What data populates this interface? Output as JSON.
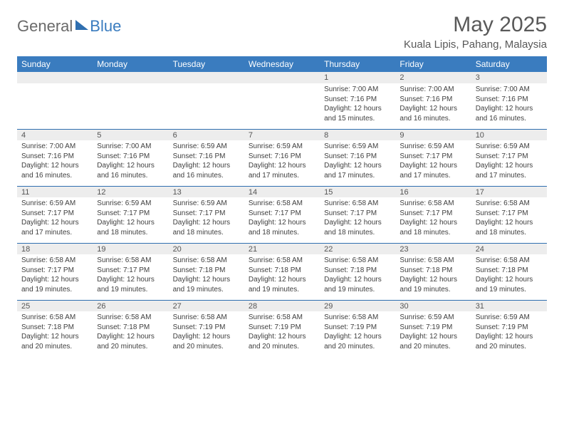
{
  "brand": {
    "general": "General",
    "blue": "Blue"
  },
  "title": "May 2025",
  "location": "Kuala Lipis, Pahang, Malaysia",
  "day_headers": [
    "Sunday",
    "Monday",
    "Tuesday",
    "Wednesday",
    "Thursday",
    "Friday",
    "Saturday"
  ],
  "colors": {
    "header_bg": "#3a7cbf",
    "header_text": "#ffffff",
    "daynum_bg": "#ededed",
    "rule": "#2f6fb0",
    "body_text": "#404040",
    "title_text": "#595959"
  },
  "typography": {
    "title_fontsize": 30,
    "location_fontsize": 15,
    "header_fontsize": 12,
    "daynum_fontsize": 11,
    "detail_fontsize": 10
  },
  "weeks": [
    {
      "nums": [
        "",
        "",
        "",
        "",
        "1",
        "2",
        "3"
      ],
      "cells": [
        null,
        null,
        null,
        null,
        {
          "sunrise": "7:00 AM",
          "sunset": "7:16 PM",
          "daylight": "12 hours and 15 minutes."
        },
        {
          "sunrise": "7:00 AM",
          "sunset": "7:16 PM",
          "daylight": "12 hours and 16 minutes."
        },
        {
          "sunrise": "7:00 AM",
          "sunset": "7:16 PM",
          "daylight": "12 hours and 16 minutes."
        }
      ]
    },
    {
      "nums": [
        "4",
        "5",
        "6",
        "7",
        "8",
        "9",
        "10"
      ],
      "cells": [
        {
          "sunrise": "7:00 AM",
          "sunset": "7:16 PM",
          "daylight": "12 hours and 16 minutes."
        },
        {
          "sunrise": "7:00 AM",
          "sunset": "7:16 PM",
          "daylight": "12 hours and 16 minutes."
        },
        {
          "sunrise": "6:59 AM",
          "sunset": "7:16 PM",
          "daylight": "12 hours and 16 minutes."
        },
        {
          "sunrise": "6:59 AM",
          "sunset": "7:16 PM",
          "daylight": "12 hours and 17 minutes."
        },
        {
          "sunrise": "6:59 AM",
          "sunset": "7:16 PM",
          "daylight": "12 hours and 17 minutes."
        },
        {
          "sunrise": "6:59 AM",
          "sunset": "7:17 PM",
          "daylight": "12 hours and 17 minutes."
        },
        {
          "sunrise": "6:59 AM",
          "sunset": "7:17 PM",
          "daylight": "12 hours and 17 minutes."
        }
      ]
    },
    {
      "nums": [
        "11",
        "12",
        "13",
        "14",
        "15",
        "16",
        "17"
      ],
      "cells": [
        {
          "sunrise": "6:59 AM",
          "sunset": "7:17 PM",
          "daylight": "12 hours and 17 minutes."
        },
        {
          "sunrise": "6:59 AM",
          "sunset": "7:17 PM",
          "daylight": "12 hours and 18 minutes."
        },
        {
          "sunrise": "6:59 AM",
          "sunset": "7:17 PM",
          "daylight": "12 hours and 18 minutes."
        },
        {
          "sunrise": "6:58 AM",
          "sunset": "7:17 PM",
          "daylight": "12 hours and 18 minutes."
        },
        {
          "sunrise": "6:58 AM",
          "sunset": "7:17 PM",
          "daylight": "12 hours and 18 minutes."
        },
        {
          "sunrise": "6:58 AM",
          "sunset": "7:17 PM",
          "daylight": "12 hours and 18 minutes."
        },
        {
          "sunrise": "6:58 AM",
          "sunset": "7:17 PM",
          "daylight": "12 hours and 18 minutes."
        }
      ]
    },
    {
      "nums": [
        "18",
        "19",
        "20",
        "21",
        "22",
        "23",
        "24"
      ],
      "cells": [
        {
          "sunrise": "6:58 AM",
          "sunset": "7:17 PM",
          "daylight": "12 hours and 19 minutes."
        },
        {
          "sunrise": "6:58 AM",
          "sunset": "7:17 PM",
          "daylight": "12 hours and 19 minutes."
        },
        {
          "sunrise": "6:58 AM",
          "sunset": "7:18 PM",
          "daylight": "12 hours and 19 minutes."
        },
        {
          "sunrise": "6:58 AM",
          "sunset": "7:18 PM",
          "daylight": "12 hours and 19 minutes."
        },
        {
          "sunrise": "6:58 AM",
          "sunset": "7:18 PM",
          "daylight": "12 hours and 19 minutes."
        },
        {
          "sunrise": "6:58 AM",
          "sunset": "7:18 PM",
          "daylight": "12 hours and 19 minutes."
        },
        {
          "sunrise": "6:58 AM",
          "sunset": "7:18 PM",
          "daylight": "12 hours and 19 minutes."
        }
      ]
    },
    {
      "nums": [
        "25",
        "26",
        "27",
        "28",
        "29",
        "30",
        "31"
      ],
      "cells": [
        {
          "sunrise": "6:58 AM",
          "sunset": "7:18 PM",
          "daylight": "12 hours and 20 minutes."
        },
        {
          "sunrise": "6:58 AM",
          "sunset": "7:18 PM",
          "daylight": "12 hours and 20 minutes."
        },
        {
          "sunrise": "6:58 AM",
          "sunset": "7:19 PM",
          "daylight": "12 hours and 20 minutes."
        },
        {
          "sunrise": "6:58 AM",
          "sunset": "7:19 PM",
          "daylight": "12 hours and 20 minutes."
        },
        {
          "sunrise": "6:58 AM",
          "sunset": "7:19 PM",
          "daylight": "12 hours and 20 minutes."
        },
        {
          "sunrise": "6:59 AM",
          "sunset": "7:19 PM",
          "daylight": "12 hours and 20 minutes."
        },
        {
          "sunrise": "6:59 AM",
          "sunset": "7:19 PM",
          "daylight": "12 hours and 20 minutes."
        }
      ]
    }
  ],
  "labels": {
    "sunrise": "Sunrise: ",
    "sunset": "Sunset: ",
    "daylight": "Daylight: "
  }
}
